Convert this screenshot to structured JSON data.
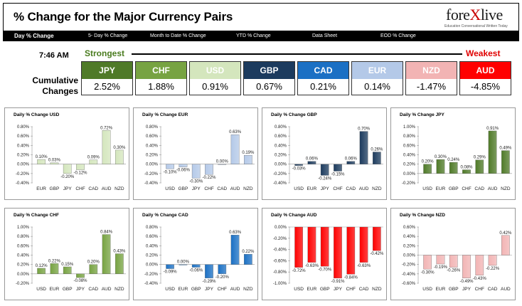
{
  "header": {
    "title": "% Change for the Major Currency Pairs",
    "logo": {
      "prefix": "fore",
      "x": "X",
      "suffix": "live",
      "tagline": "Education Conversational Written Today"
    }
  },
  "nav": {
    "tabs": [
      {
        "label": "Day % Change",
        "active": true
      },
      {
        "label": "5- Day % Change",
        "active": false
      },
      {
        "label": "Month to Date % Change",
        "active": false
      },
      {
        "label": "YTD % Change",
        "active": false
      },
      {
        "label": "Data Sheet",
        "active": false
      },
      {
        "label": "EOD % Change",
        "active": false
      }
    ]
  },
  "summary": {
    "time": "7:46 AM",
    "strongest_label": "Strongest",
    "weakest_label": "Weakest",
    "cumulative_label": "Cumulative Changes",
    "currencies": [
      {
        "code": "JPY",
        "value": "2.52%",
        "color": "#4f7a28"
      },
      {
        "code": "CHF",
        "value": "1.88%",
        "color": "#77a342"
      },
      {
        "code": "USD",
        "value": "0.91%",
        "color": "#d4e6bd"
      },
      {
        "code": "GBP",
        "value": "0.67%",
        "color": "#1c3b5e"
      },
      {
        "code": "CAD",
        "value": "0.21%",
        "color": "#1b70c4"
      },
      {
        "code": "EUR",
        "value": "0.14%",
        "color": "#b4c9e8"
      },
      {
        "code": "NZD",
        "value": "-1.47%",
        "color": "#f2b4b4"
      },
      {
        "code": "AUD",
        "value": "-4.85%",
        "color": "#ff0000"
      }
    ]
  },
  "chart_data": [
    {
      "type": "bar",
      "title": "Daily % Change USD",
      "categories": [
        "EUR",
        "GBP",
        "JPY",
        "CHF",
        "CAD",
        "AUD",
        "NZD"
      ],
      "values": [
        0.1,
        0.03,
        -0.2,
        -0.12,
        0.09,
        0.72,
        0.3
      ],
      "labels": [
        "0.10%",
        "0.03%",
        "-0.20%",
        "-0.12%",
        "0.09%",
        "0.72%",
        "0.30%"
      ],
      "yticks": [
        "0.80%",
        "0.60%",
        "0.40%",
        "0.20%",
        "0.00%",
        "-0.20%",
        "-0.40%"
      ],
      "ylim": [
        -0.4,
        0.8
      ],
      "color": "#d4e6bd"
    },
    {
      "type": "bar",
      "title": "Daily % Change EUR",
      "categories": [
        "USD",
        "GBP",
        "JPY",
        "CHF",
        "CAD",
        "AUD",
        "NZD"
      ],
      "values": [
        -0.1,
        -0.06,
        -0.3,
        -0.22,
        0.0,
        0.63,
        0.19
      ],
      "labels": [
        "-0.10%",
        "-0.06%",
        "-0.30%",
        "-0.22%",
        "0.00%",
        "0.63%",
        "0.19%"
      ],
      "yticks": [
        "0.80%",
        "0.60%",
        "0.40%",
        "0.20%",
        "0.00%",
        "-0.20%",
        "-0.40%"
      ],
      "ylim": [
        -0.4,
        0.8
      ],
      "color": "#b4c9e8"
    },
    {
      "type": "bar",
      "title": "Daily % Change GBP",
      "categories": [
        "USD",
        "EUR",
        "JPY",
        "CHF",
        "CAD",
        "AUD",
        "NZD"
      ],
      "values": [
        -0.03,
        0.06,
        -0.24,
        -0.15,
        0.06,
        0.7,
        0.26
      ],
      "labels": [
        "-0.03%",
        "0.06%",
        "-0.24%",
        "-0.15%",
        "0.06%",
        "0.70%",
        "0.26%"
      ],
      "yticks": [
        "0.80%",
        "0.60%",
        "0.40%",
        "0.20%",
        "0.00%",
        "-0.20%",
        "-0.40%"
      ],
      "ylim": [
        -0.4,
        0.8
      ],
      "color": "#1c3b5e"
    },
    {
      "type": "bar",
      "title": "Daily % Change JPY",
      "categories": [
        "USD",
        "EUR",
        "GBP",
        "CHF",
        "CAD",
        "AUD",
        "NZD"
      ],
      "values": [
        0.2,
        0.3,
        0.24,
        0.08,
        0.29,
        0.91,
        0.49
      ],
      "labels": [
        "0.20%",
        "0.30%",
        "0.24%",
        "0.08%",
        "0.29%",
        "0.91%",
        "0.49%"
      ],
      "yticks": [
        "1.00%",
        "0.80%",
        "0.60%",
        "0.40%",
        "0.20%",
        "0.00%",
        "-0.20%"
      ],
      "ylim": [
        -0.2,
        1.0
      ],
      "color": "#4f7a28"
    },
    {
      "type": "bar",
      "title": "Daily % Change CHF",
      "categories": [
        "USD",
        "EUR",
        "GBP",
        "JPY",
        "CAD",
        "AUD",
        "NZD"
      ],
      "values": [
        0.12,
        0.22,
        0.15,
        -0.08,
        0.2,
        0.84,
        0.43
      ],
      "labels": [
        "0.12%",
        "0.22%",
        "0.15%",
        "-0.08%",
        "0.20%",
        "0.84%",
        "0.43%"
      ],
      "yticks": [
        "1.00%",
        "0.80%",
        "0.60%",
        "0.40%",
        "0.20%",
        "0.00%",
        "-0.20%"
      ],
      "ylim": [
        -0.2,
        1.0
      ],
      "color": "#77a342"
    },
    {
      "type": "bar",
      "title": "Daily % Change CAD",
      "categories": [
        "USD",
        "EUR",
        "GBP",
        "JPY",
        "CHF",
        "AUD",
        "NZD"
      ],
      "values": [
        -0.09,
        0.0,
        -0.06,
        -0.29,
        -0.2,
        0.63,
        0.22
      ],
      "labels": [
        "-0.09%",
        "0.00%",
        "-0.06%",
        "-0.29%",
        "-0.20%",
        "0.63%",
        "0.22%"
      ],
      "yticks": [
        "0.80%",
        "0.60%",
        "0.40%",
        "0.20%",
        "0.00%",
        "-0.20%",
        "-0.40%"
      ],
      "ylim": [
        -0.4,
        0.8
      ],
      "color": "#1b70c4"
    },
    {
      "type": "bar",
      "title": "Daily % Change AUD",
      "categories": [
        "USD",
        "EUR",
        "GBP",
        "JPY",
        "CHF",
        "CAD",
        "NZD"
      ],
      "values": [
        -0.72,
        -0.63,
        -0.7,
        -0.91,
        -0.84,
        -0.63,
        -0.42
      ],
      "labels": [
        "-0.72%",
        "-0.63%",
        "-0.70%",
        "-0.91%",
        "-0.84%",
        "-0.63%",
        "-0.42%"
      ],
      "yticks": [
        "0.00%",
        "-0.20%",
        "-0.40%",
        "-0.60%",
        "-0.80%",
        "-1.00%"
      ],
      "ylim": [
        -1.0,
        0.0
      ],
      "color": "#ff0000"
    },
    {
      "type": "bar",
      "title": "Daily % Change NZD",
      "categories": [
        "USD",
        "EUR",
        "GBP",
        "JPY",
        "CHF",
        "CAD",
        "AUD"
      ],
      "values": [
        -0.3,
        -0.19,
        -0.26,
        -0.49,
        -0.43,
        -0.22,
        0.42
      ],
      "labels": [
        "-0.30%",
        "-0.19%",
        "-0.26%",
        "-0.49%",
        "-0.43%",
        "-0.22%",
        "0.42%"
      ],
      "yticks": [
        "0.60%",
        "0.40%",
        "0.20%",
        "0.00%",
        "-0.20%",
        "-0.40%",
        "-0.60%"
      ],
      "ylim": [
        -0.6,
        0.6
      ],
      "color": "#f2b4b4"
    }
  ]
}
